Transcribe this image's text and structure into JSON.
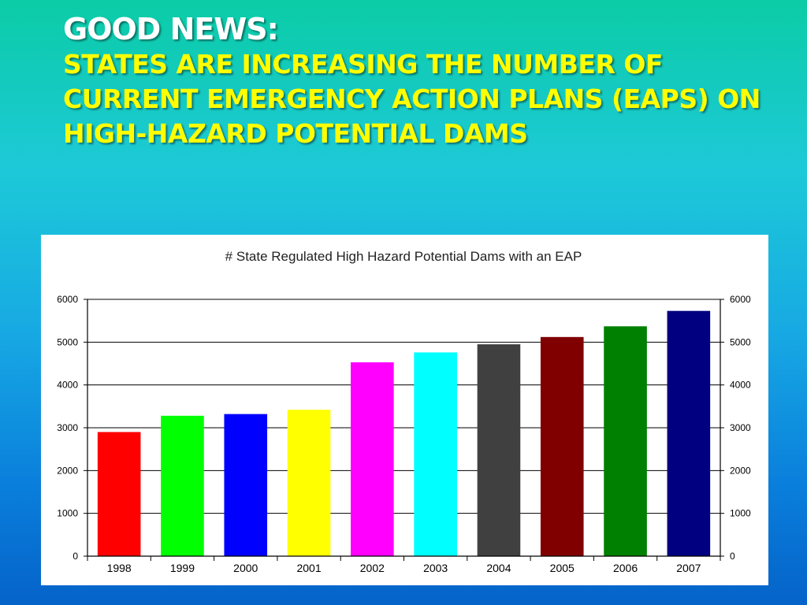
{
  "slide": {
    "headline": "GOOD NEWS:",
    "subline": "STATES ARE INCREASING THE NUMBER OF CURRENT EMERGENCY ACTION PLANS (EAPS) ON HIGH-HAZARD POTENTIAL DAMS"
  },
  "chart_data": {
    "type": "bar",
    "title": "# State Regulated High Hazard Potential Dams with an EAP",
    "xlabel": "",
    "ylabel": "",
    "categories": [
      "1998",
      "1999",
      "2000",
      "2001",
      "2002",
      "2003",
      "2004",
      "2005",
      "2006",
      "2007"
    ],
    "values": [
      2900,
      3280,
      3320,
      3420,
      4530,
      4760,
      4950,
      5120,
      5370,
      5730
    ],
    "colors": [
      "#ff0000",
      "#00ff00",
      "#0000ff",
      "#ffff00",
      "#ff00ff",
      "#00ffff",
      "#404040",
      "#800000",
      "#008000",
      "#000080"
    ],
    "ylim": [
      0,
      6000
    ],
    "yticks": [
      "0",
      "1000",
      "2000",
      "3000",
      "4000",
      "5000",
      "6000"
    ],
    "grid": true,
    "secondary_axis": true,
    "legend": "none"
  }
}
